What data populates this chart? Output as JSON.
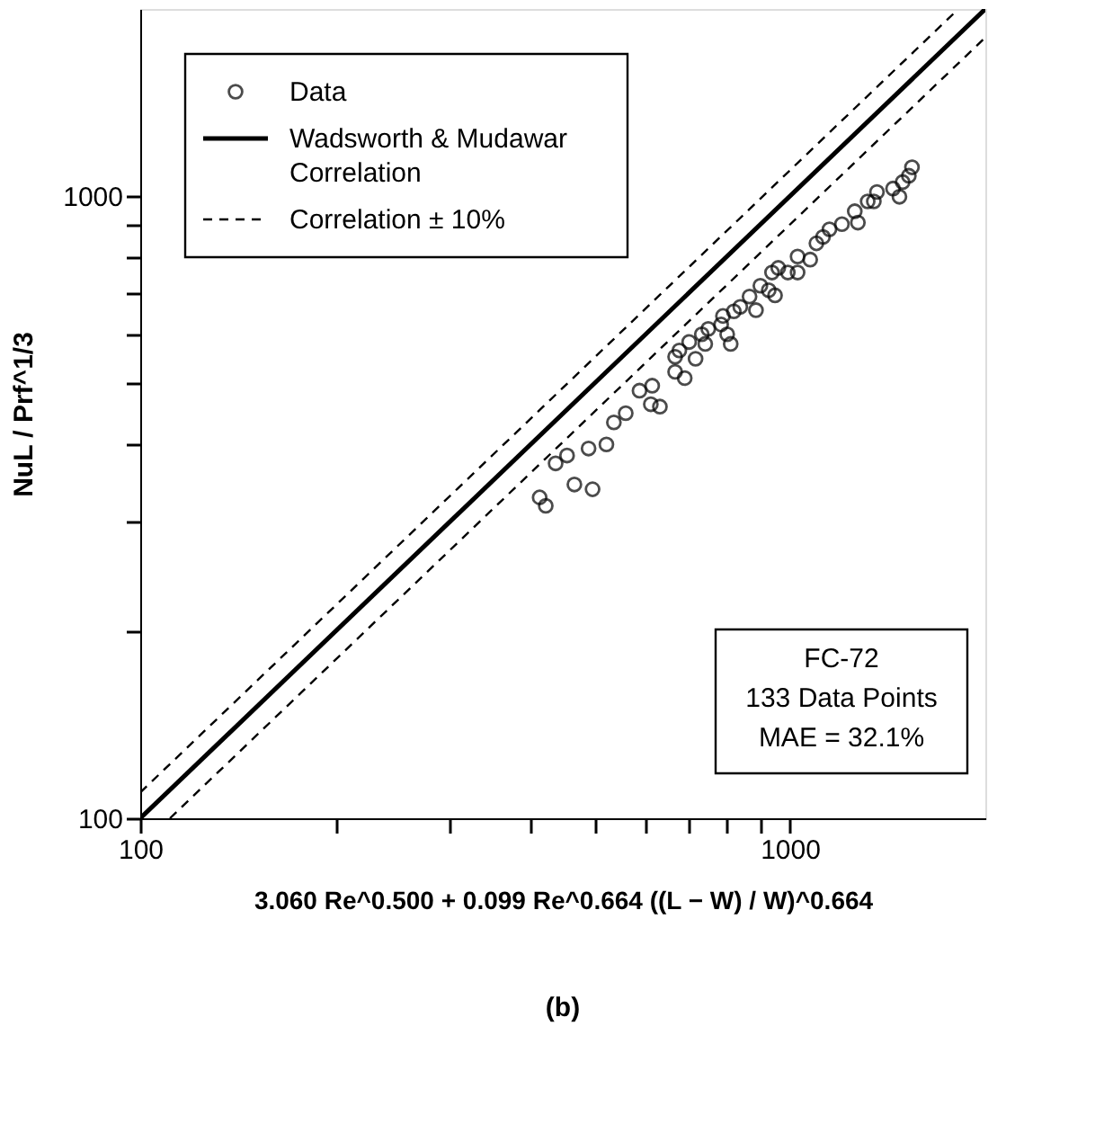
{
  "chart_data": {
    "type": "scatter",
    "xlabel": "3.060 Re^0.500 + 0.099 Re^0.664 ((L − W) / W)^0.664",
    "ylabel": "NuL / Prf^1/3",
    "log": "xy",
    "xlim": [
      100,
      2000
    ],
    "ylim": [
      100,
      2000
    ],
    "xticks": [
      100,
      {
        "value": 200,
        "label": null
      },
      {
        "value": 300,
        "label": null
      },
      {
        "value": 400,
        "label": null
      },
      {
        "value": 500,
        "label": null
      },
      {
        "value": 600,
        "label": null
      },
      {
        "value": 700,
        "label": null
      },
      {
        "value": 800,
        "label": null
      },
      {
        "value": 900,
        "label": null
      },
      1000
    ],
    "yticks": [
      100,
      {
        "value": 200,
        "label": null
      },
      {
        "value": 300,
        "label": null
      },
      {
        "value": 400,
        "label": null
      },
      {
        "value": 500,
        "label": null
      },
      {
        "value": 600,
        "label": null
      },
      {
        "value": 700,
        "label": null
      },
      {
        "value": 800,
        "label": null
      },
      {
        "value": 900,
        "label": null
      },
      1000
    ],
    "legend": "top left",
    "series": [
      {
        "name": "Data",
        "marker": "circle",
        "color": "#000000",
        "x": [
          412,
          421,
          436,
          454,
          466,
          490,
          497,
          522,
          536,
          559,
          587,
          614,
          611,
          631,
          666,
          689,
          666,
          676,
          700,
          716,
          732,
          749,
          741,
          784,
          801,
          811,
          789,
          820,
          839,
          867,
          887,
          901,
          928,
          939,
          960,
          949,
          993,
          1028,
          1028,
          1075,
          1099,
          1125,
          1151,
          1203,
          1259,
          1273,
          1318,
          1362,
          1347,
          1442,
          1475,
          1492,
          1525,
          1542
        ],
        "values": [
          328,
          318,
          372,
          383,
          344,
          393,
          338,
          399,
          433,
          448,
          487,
          496,
          463,
          459,
          522,
          510,
          552,
          565,
          583,
          548,
          600,
          612,
          579,
          622,
          600,
          579,
          642,
          653,
          664,
          690,
          656,
          718,
          706,
          754,
          767,
          693,
          754,
          800,
          754,
          791,
          840,
          860,
          885,
          902,
          946,
          907,
          981,
          1016,
          981,
          1029,
          998,
          1054,
          1079,
          1113
        ]
      },
      {
        "name": "Wadsworth & Mudawar Correlation",
        "type": "line",
        "marker": "none",
        "color": "#000000",
        "line_style": "solid",
        "x": [
          100,
          2000
        ],
        "values": [
          100,
          2000
        ]
      },
      {
        "name": "Correlation ± 10%",
        "type": "line",
        "marker": "none",
        "color": "#000000",
        "line_style": "dashed",
        "x": [
          100,
          1818
        ],
        "values": [
          110,
          2000
        ]
      },
      {
        "type": "line",
        "marker": "none",
        "color": "#000000",
        "line_style": "dashed",
        "x": [
          111.1,
          2000
        ],
        "values": [
          100,
          1800
        ]
      }
    ],
    "annotations": [
      "FC-72\n133 Data Points\nMAE = 32.1%",
      "(b)"
    ]
  }
}
